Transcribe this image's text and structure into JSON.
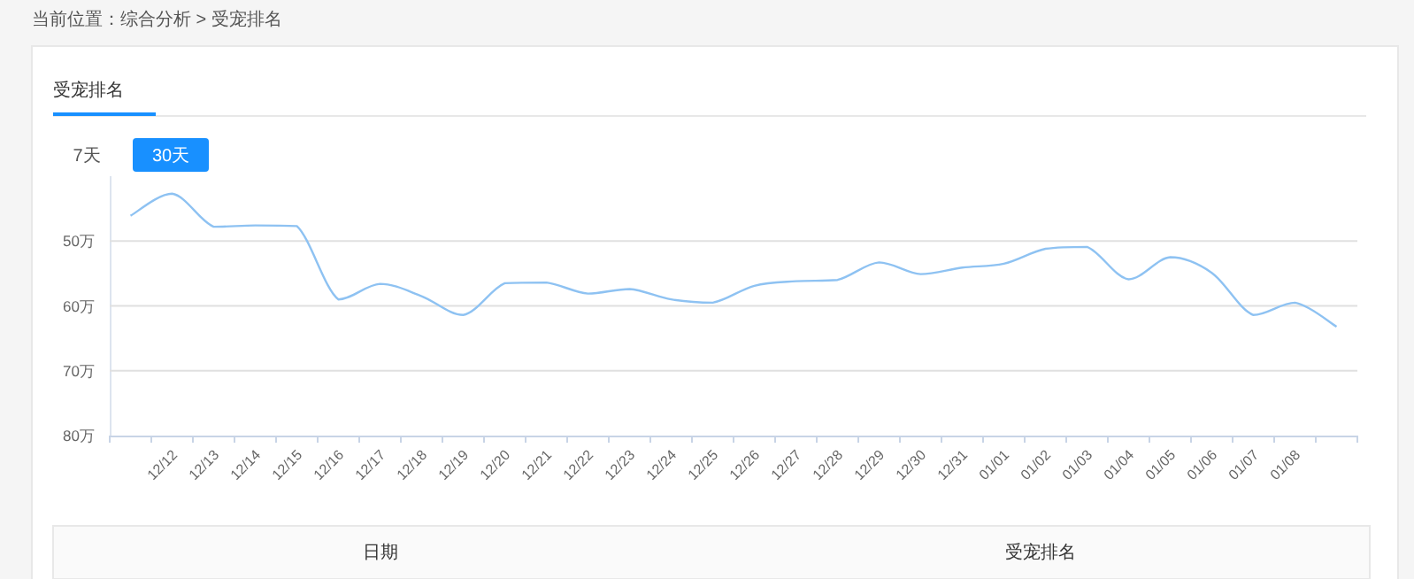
{
  "chart_data": {
    "type": "line",
    "title": "受宠排名",
    "annotations": [
      "当前位置：综合分析 > 受宠排名",
      "7天",
      "30天",
      "日期",
      "受宠排名"
    ],
    "categories": [
      null,
      "12/12",
      "12/13",
      "12/14",
      "12/15",
      "12/16",
      "12/17",
      "12/18",
      "12/19",
      "12/20",
      "12/21",
      "12/22",
      "12/23",
      "12/24",
      "12/25",
      "12/26",
      "12/27",
      "12/28",
      "12/29",
      "12/30",
      "12/31",
      "01/01",
      "01/02",
      "01/03",
      "01/04",
      "01/05",
      "01/06",
      "01/07",
      "01/08",
      null
    ],
    "series": [
      {
        "color": "#8ec2f2",
        "values": [
          46.1,
          42.7,
          47.8,
          47.6,
          47.7,
          59.0,
          56.6,
          58.5,
          61.4,
          56.5,
          56.4,
          58.1,
          57.4,
          59.0,
          59.5,
          56.9,
          56.2,
          56.0,
          53.3,
          55.1,
          54.1,
          53.5,
          51.2,
          50.9,
          55.9,
          52.5,
          54.9,
          61.4,
          59.5,
          63.2
        ]
      }
    ],
    "yticks": [
      {
        "value": 50,
        "label": "50万"
      },
      {
        "value": 60,
        "label": "60万"
      },
      {
        "value": 70,
        "label": "70万"
      },
      {
        "value": 80,
        "label": "80万"
      }
    ],
    "ylim": [
      80,
      40
    ],
    "grid": "y",
    "marker": "none",
    "line_style": "solid"
  }
}
